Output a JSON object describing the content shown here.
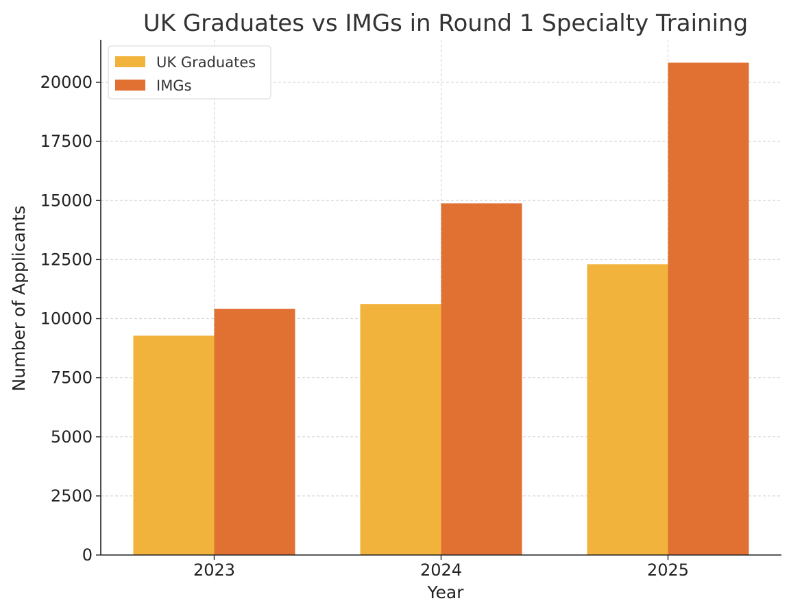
{
  "chart_data": {
    "type": "bar",
    "title": "UK Graduates vs IMGs in Round 1 Specialty Training",
    "xlabel": "Year",
    "ylabel": "Number of Applicants",
    "categories": [
      "2023",
      "2024",
      "2025"
    ],
    "series": [
      {
        "name": "UK Graduates",
        "values": [
          9280,
          10620,
          12300
        ],
        "color": "#F2B33D"
      },
      {
        "name": "IMGs",
        "values": [
          10420,
          14880,
          20830
        ],
        "color": "#E07133"
      }
    ],
    "ylim": [
      0,
      21800
    ],
    "yticks": [
      0,
      2500,
      5000,
      7500,
      10000,
      12500,
      15000,
      17500,
      20000
    ],
    "grid": true,
    "legend_position": "top-left"
  }
}
